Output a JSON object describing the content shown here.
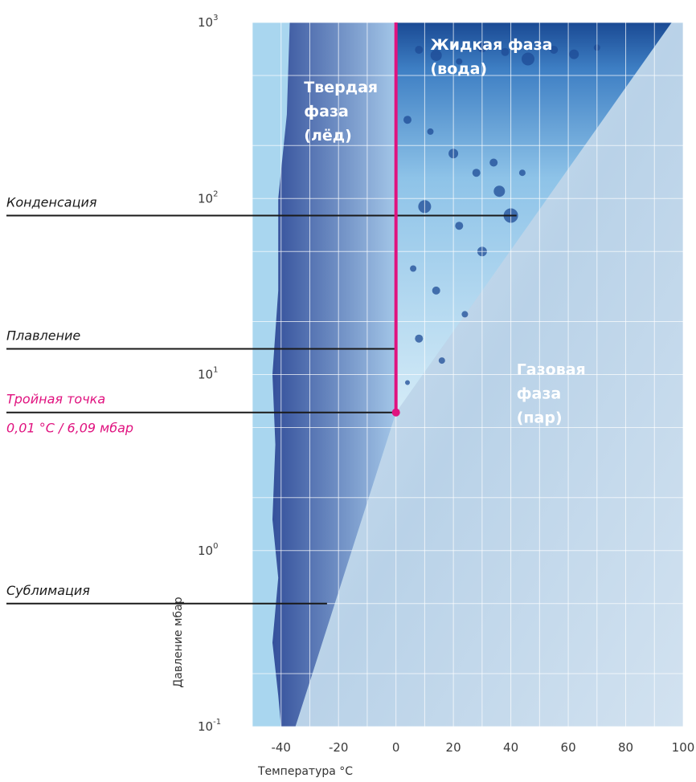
{
  "chart_data": {
    "type": "phase-diagram",
    "xlabel": "Температура °C",
    "ylabel": "Давление мбар",
    "xlim": [
      -50,
      100
    ],
    "ylim": [
      0.1,
      1000
    ],
    "y_scale": "log",
    "grid": true,
    "x_ticks": [
      -40,
      -20,
      0,
      20,
      40,
      60,
      80,
      100
    ],
    "y_ticks": [
      {
        "base": "10",
        "exp": "3",
        "value": 1000
      },
      {
        "base": "10",
        "exp": "2",
        "value": 100
      },
      {
        "base": "10",
        "exp": "1",
        "value": 10
      },
      {
        "base": "10",
        "exp": "0",
        "value": 1
      },
      {
        "base": "10",
        "exp": "-1",
        "value": 0.1
      }
    ],
    "regions": [
      {
        "lines": [
          "Твердая",
          "фаза",
          "(лёд)"
        ]
      },
      {
        "lines": [
          "Жидкая фаза",
          "(вода)"
        ]
      },
      {
        "lines": [
          "Газовая",
          "фаза",
          "(пар)"
        ]
      }
    ],
    "melting_line": {
      "x": 0,
      "y_from": 6.09,
      "y_to": 1000
    },
    "triple_point": {
      "x": 0.01,
      "y": 6.09
    },
    "annotations": [
      {
        "label": "Конденсация",
        "y": 80,
        "x_end": 42,
        "highlight": false
      },
      {
        "label": "Плавление",
        "y": 14,
        "x_end": 0,
        "highlight": false
      },
      {
        "label": "Тройная точка",
        "sublabel": "0,01 °C / 6,09 мбар",
        "y": 6.09,
        "x_end": 0,
        "highlight": true
      },
      {
        "label": "Сублимация",
        "y": 0.5,
        "x_end": -24,
        "highlight": false
      }
    ],
    "colors": {
      "solid": "#3f5ea8",
      "liquid": "#1a4f9a",
      "gas": "#c9dcec",
      "background": "#a9d6ef",
      "melting_line": "#e0127f"
    }
  }
}
